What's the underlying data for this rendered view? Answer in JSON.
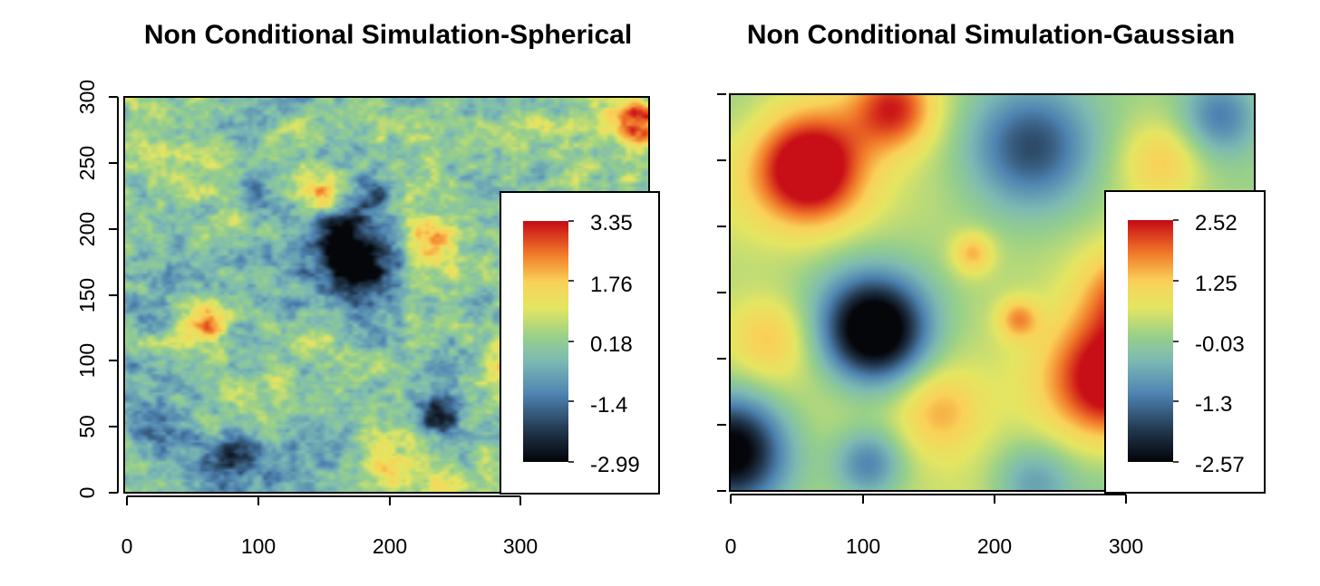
{
  "chart_data": [
    {
      "type": "heatmap",
      "title": "Non Conditional Simulation-Spherical",
      "xlabel": "",
      "ylabel": "",
      "xlim": [
        0,
        400
      ],
      "ylim": [
        0,
        300
      ],
      "x_ticks": [
        "0",
        "100",
        "200",
        "300"
      ],
      "y_ticks": [
        "0",
        "50",
        "100",
        "150",
        "200",
        "250",
        "300"
      ],
      "show_y_tick_labels": true,
      "texture": "rough",
      "legend": {
        "position": "bottom-right",
        "labels": [
          "3.35",
          "1.76",
          "0.18",
          "-1.4",
          "-2.99"
        ],
        "max": 3.35,
        "min": -2.99
      },
      "blobs": [
        {
          "x": 178,
          "y": 172,
          "r": 28,
          "v": -2.9
        },
        {
          "x": 165,
          "y": 195,
          "r": 18,
          "v": -2.4
        },
        {
          "x": 240,
          "y": 60,
          "r": 16,
          "v": -2.5
        },
        {
          "x": 80,
          "y": 25,
          "r": 22,
          "v": -2.3
        },
        {
          "x": 25,
          "y": 50,
          "r": 26,
          "v": -1.8
        },
        {
          "x": 100,
          "y": 230,
          "r": 18,
          "v": -1.9
        },
        {
          "x": 190,
          "y": 225,
          "r": 14,
          "v": -1.6
        },
        {
          "x": 60,
          "y": 130,
          "r": 14,
          "v": 2.3
        },
        {
          "x": 235,
          "y": 188,
          "r": 16,
          "v": 2.2
        },
        {
          "x": 395,
          "y": 280,
          "r": 18,
          "v": 3.2
        },
        {
          "x": 120,
          "y": 80,
          "r": 12,
          "v": 1.8
        },
        {
          "x": 295,
          "y": 100,
          "r": 18,
          "v": 2.0
        },
        {
          "x": 150,
          "y": 230,
          "r": 14,
          "v": 1.6
        },
        {
          "x": 340,
          "y": 260,
          "r": 40,
          "v": 1.2
        },
        {
          "x": 200,
          "y": 20,
          "r": 20,
          "v": 1.3
        }
      ]
    },
    {
      "type": "heatmap",
      "title": "Non Conditional Simulation-Gaussian",
      "xlabel": "",
      "ylabel": "",
      "xlim": [
        0,
        400
      ],
      "ylim": [
        0,
        300
      ],
      "x_ticks": [
        "0",
        "100",
        "200",
        "300"
      ],
      "y_ticks": [
        "0",
        "50",
        "100",
        "150",
        "200",
        "250",
        "300"
      ],
      "show_y_tick_labels": false,
      "texture": "smooth",
      "legend": {
        "position": "bottom-right",
        "labels": [
          "2.52",
          "1.25",
          "-0.03",
          "-1.3",
          "-2.57"
        ],
        "max": 2.52,
        "min": -2.57
      },
      "blobs": [
        {
          "x": 60,
          "y": 245,
          "r": 40,
          "v": 2.9
        },
        {
          "x": 125,
          "y": 290,
          "r": 30,
          "v": 1.9
        },
        {
          "x": 110,
          "y": 120,
          "r": 38,
          "v": -3.6
        },
        {
          "x": 230,
          "y": 260,
          "r": 45,
          "v": -2.0
        },
        {
          "x": 375,
          "y": 285,
          "r": 30,
          "v": -1.6
        },
        {
          "x": 290,
          "y": 85,
          "r": 45,
          "v": 2.6
        },
        {
          "x": 305,
          "y": 150,
          "r": 35,
          "v": 1.5
        },
        {
          "x": 0,
          "y": 30,
          "r": 40,
          "v": -3.2
        },
        {
          "x": 105,
          "y": 20,
          "r": 25,
          "v": -1.5
        },
        {
          "x": 230,
          "y": 5,
          "r": 30,
          "v": -1.2
        },
        {
          "x": 185,
          "y": 180,
          "r": 15,
          "v": 1.2
        },
        {
          "x": 220,
          "y": 130,
          "r": 15,
          "v": 1.3
        },
        {
          "x": 30,
          "y": 115,
          "r": 30,
          "v": 1.0
        },
        {
          "x": 160,
          "y": 60,
          "r": 30,
          "v": 1.0
        },
        {
          "x": 330,
          "y": 250,
          "r": 30,
          "v": 1.0
        }
      ]
    }
  ]
}
